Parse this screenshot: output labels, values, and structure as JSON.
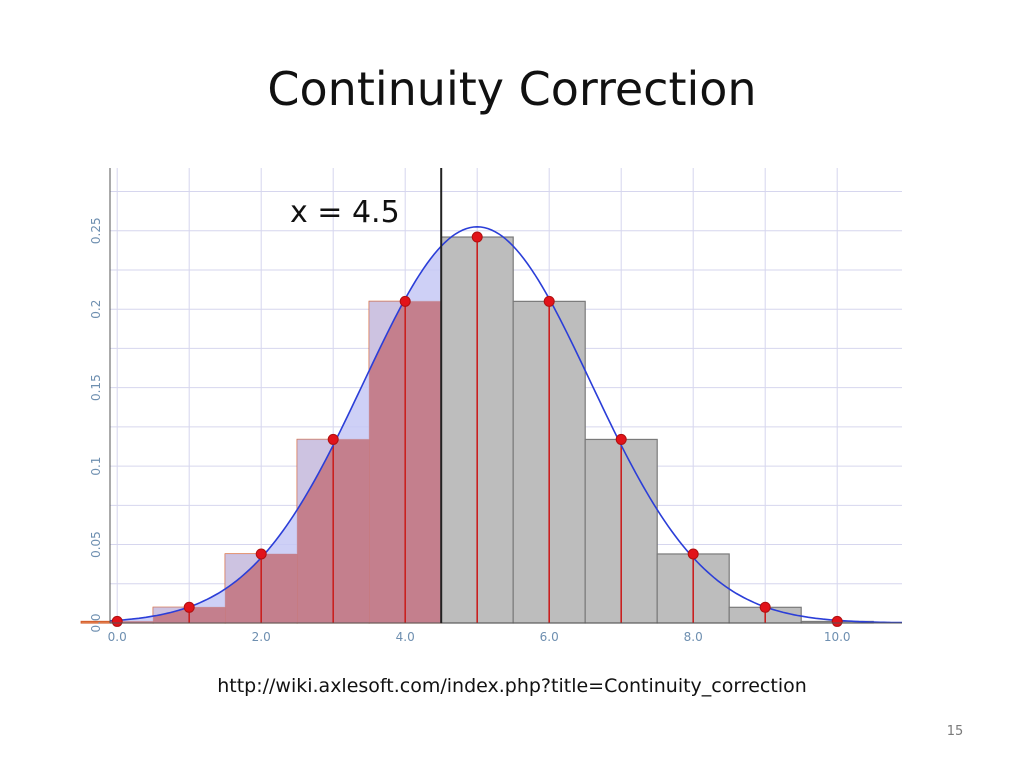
{
  "slide": {
    "title": "Continuity Correction",
    "source_url": "http://wiki.axlesoft.com/index.php?title=Continuity_correction",
    "page_number": "15"
  },
  "chart_data": {
    "type": "bar",
    "annotation": "x = 4.5",
    "cut_x": 4.5,
    "xlim": [
      -0.1,
      10.9
    ],
    "ylim": [
      0,
      0.29
    ],
    "x_ticks": [
      {
        "value": 0,
        "label": "0.0"
      },
      {
        "value": 2,
        "label": "2.0"
      },
      {
        "value": 4,
        "label": "4.0"
      },
      {
        "value": 6,
        "label": "6.0"
      },
      {
        "value": 8,
        "label": "8.0"
      },
      {
        "value": 10,
        "label": "10.0"
      }
    ],
    "y_ticks": [
      {
        "value": 0,
        "label": "0.0"
      },
      {
        "value": 0.05,
        "label": "0.05"
      },
      {
        "value": 0.1,
        "label": "0.1"
      },
      {
        "value": 0.15,
        "label": "0.15"
      },
      {
        "value": 0.2,
        "label": "0.2"
      },
      {
        "value": 0.25,
        "label": "0.25"
      }
    ],
    "x": [
      0,
      1,
      2,
      3,
      4,
      5,
      6,
      7,
      8,
      9,
      10
    ],
    "values": [
      0.001,
      0.01,
      0.044,
      0.117,
      0.205,
      0.246,
      0.205,
      0.117,
      0.044,
      0.01,
      0.001
    ],
    "normal_curve": {
      "mean": 5,
      "sd": 1.58
    },
    "colors": {
      "bar_left": "#f4a773",
      "bar_right": "#bdbdbd",
      "area_under_curve": "#c47f8d",
      "area_above": "#c6c8f4",
      "curve": "#2b3ed8",
      "points": "#e2131a",
      "stems": "#c92020",
      "grid": "#d6d6ee"
    },
    "grid": true,
    "legend": "none"
  }
}
